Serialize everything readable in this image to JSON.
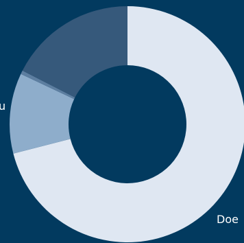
{
  "chart_data": {
    "type": "pie",
    "donut": true,
    "categories": [
      "Does",
      "",
      "",
      ""
    ],
    "values": [
      71,
      11,
      0.5,
      17.5
    ],
    "colors": [
      "#dfe7f2",
      "#8eadcb",
      "#5d7ea0",
      "#36597b"
    ],
    "visible_labels": [
      "Doe",
      "u"
    ],
    "title": "",
    "legend": "none",
    "background": "#023a5f"
  }
}
